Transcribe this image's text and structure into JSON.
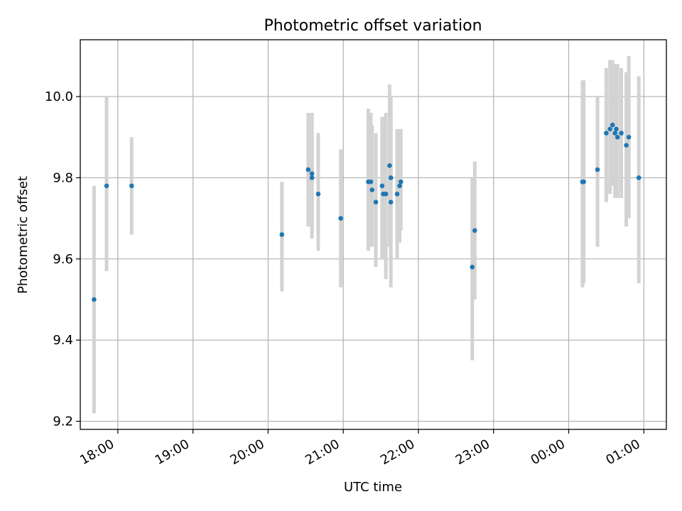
{
  "chart_data": {
    "type": "scatter",
    "title": "Photometric offset variation",
    "xlabel": "UTC time",
    "ylabel": "Photometric offset",
    "x_axis_kind": "time",
    "xlim": [
      "17:30",
      "01:18"
    ],
    "ylim": [
      9.18,
      10.14
    ],
    "x_ticks": [
      "18:00",
      "19:00",
      "20:00",
      "21:00",
      "22:00",
      "23:00",
      "00:00",
      "01:00"
    ],
    "y_ticks": [
      "9.2",
      "9.4",
      "9.6",
      "9.8",
      "10.0"
    ],
    "grid": true,
    "colors": {
      "point": "#1f77b4",
      "errorbar": "#d3d3d3",
      "grid": "#b0b0b0"
    },
    "points": [
      {
        "t": "17:41",
        "y": 9.5,
        "lo": 9.22,
        "hi": 9.78
      },
      {
        "t": "17:51",
        "y": 9.78,
        "lo": 9.57,
        "hi": 10.0
      },
      {
        "t": "18:11",
        "y": 9.78,
        "lo": 9.66,
        "hi": 9.9
      },
      {
        "t": "20:11",
        "y": 9.66,
        "lo": 9.52,
        "hi": 9.79
      },
      {
        "t": "20:32",
        "y": 9.82,
        "lo": 9.68,
        "hi": 9.96
      },
      {
        "t": "20:35",
        "y": 9.81,
        "lo": 9.66,
        "hi": 9.96
      },
      {
        "t": "20:35",
        "y": 9.8,
        "lo": 9.65,
        "hi": 9.96
      },
      {
        "t": "20:40",
        "y": 9.76,
        "lo": 9.62,
        "hi": 9.91
      },
      {
        "t": "20:58",
        "y": 9.7,
        "lo": 9.53,
        "hi": 9.87
      },
      {
        "t": "21:20",
        "y": 9.79,
        "lo": 9.62,
        "hi": 9.97
      },
      {
        "t": "21:22",
        "y": 9.79,
        "lo": 9.63,
        "hi": 9.96
      },
      {
        "t": "21:23",
        "y": 9.77,
        "lo": 9.63,
        "hi": 9.93
      },
      {
        "t": "21:26",
        "y": 9.74,
        "lo": 9.58,
        "hi": 9.91
      },
      {
        "t": "21:31",
        "y": 9.78,
        "lo": 9.6,
        "hi": 9.95
      },
      {
        "t": "21:32",
        "y": 9.76,
        "lo": 9.6,
        "hi": 9.95
      },
      {
        "t": "21:34",
        "y": 9.76,
        "lo": 9.55,
        "hi": 9.96
      },
      {
        "t": "21:37",
        "y": 9.83,
        "lo": 9.63,
        "hi": 10.03
      },
      {
        "t": "21:38",
        "y": 9.8,
        "lo": 9.64,
        "hi": 10.0
      },
      {
        "t": "21:38",
        "y": 9.74,
        "lo": 9.53,
        "hi": 9.96
      },
      {
        "t": "21:43",
        "y": 9.76,
        "lo": 9.6,
        "hi": 9.92
      },
      {
        "t": "21:45",
        "y": 9.78,
        "lo": 9.64,
        "hi": 9.92
      },
      {
        "t": "21:46",
        "y": 9.79,
        "lo": 9.67,
        "hi": 9.92
      },
      {
        "t": "22:43",
        "y": 9.58,
        "lo": 9.35,
        "hi": 9.8
      },
      {
        "t": "22:45",
        "y": 9.67,
        "lo": 9.5,
        "hi": 9.84
      },
      {
        "t": "00:11",
        "y": 9.79,
        "lo": 9.53,
        "hi": 10.04
      },
      {
        "t": "00:12",
        "y": 9.79,
        "lo": 9.54,
        "hi": 10.04
      },
      {
        "t": "00:23",
        "y": 9.82,
        "lo": 9.63,
        "hi": 10.0
      },
      {
        "t": "00:30",
        "y": 9.91,
        "lo": 9.74,
        "hi": 10.07
      },
      {
        "t": "00:33",
        "y": 9.92,
        "lo": 9.76,
        "hi": 10.09
      },
      {
        "t": "00:35",
        "y": 9.93,
        "lo": 9.78,
        "hi": 10.09
      },
      {
        "t": "00:37",
        "y": 9.91,
        "lo": 9.75,
        "hi": 10.08
      },
      {
        "t": "00:38",
        "y": 9.92,
        "lo": 9.77,
        "hi": 10.08
      },
      {
        "t": "00:39",
        "y": 9.9,
        "lo": 9.75,
        "hi": 10.08
      },
      {
        "t": "00:42",
        "y": 9.91,
        "lo": 9.75,
        "hi": 10.07
      },
      {
        "t": "00:46",
        "y": 9.88,
        "lo": 9.68,
        "hi": 10.06
      },
      {
        "t": "00:48",
        "y": 9.9,
        "lo": 9.7,
        "hi": 10.1
      },
      {
        "t": "00:56",
        "y": 9.8,
        "lo": 9.54,
        "hi": 10.05
      }
    ]
  }
}
